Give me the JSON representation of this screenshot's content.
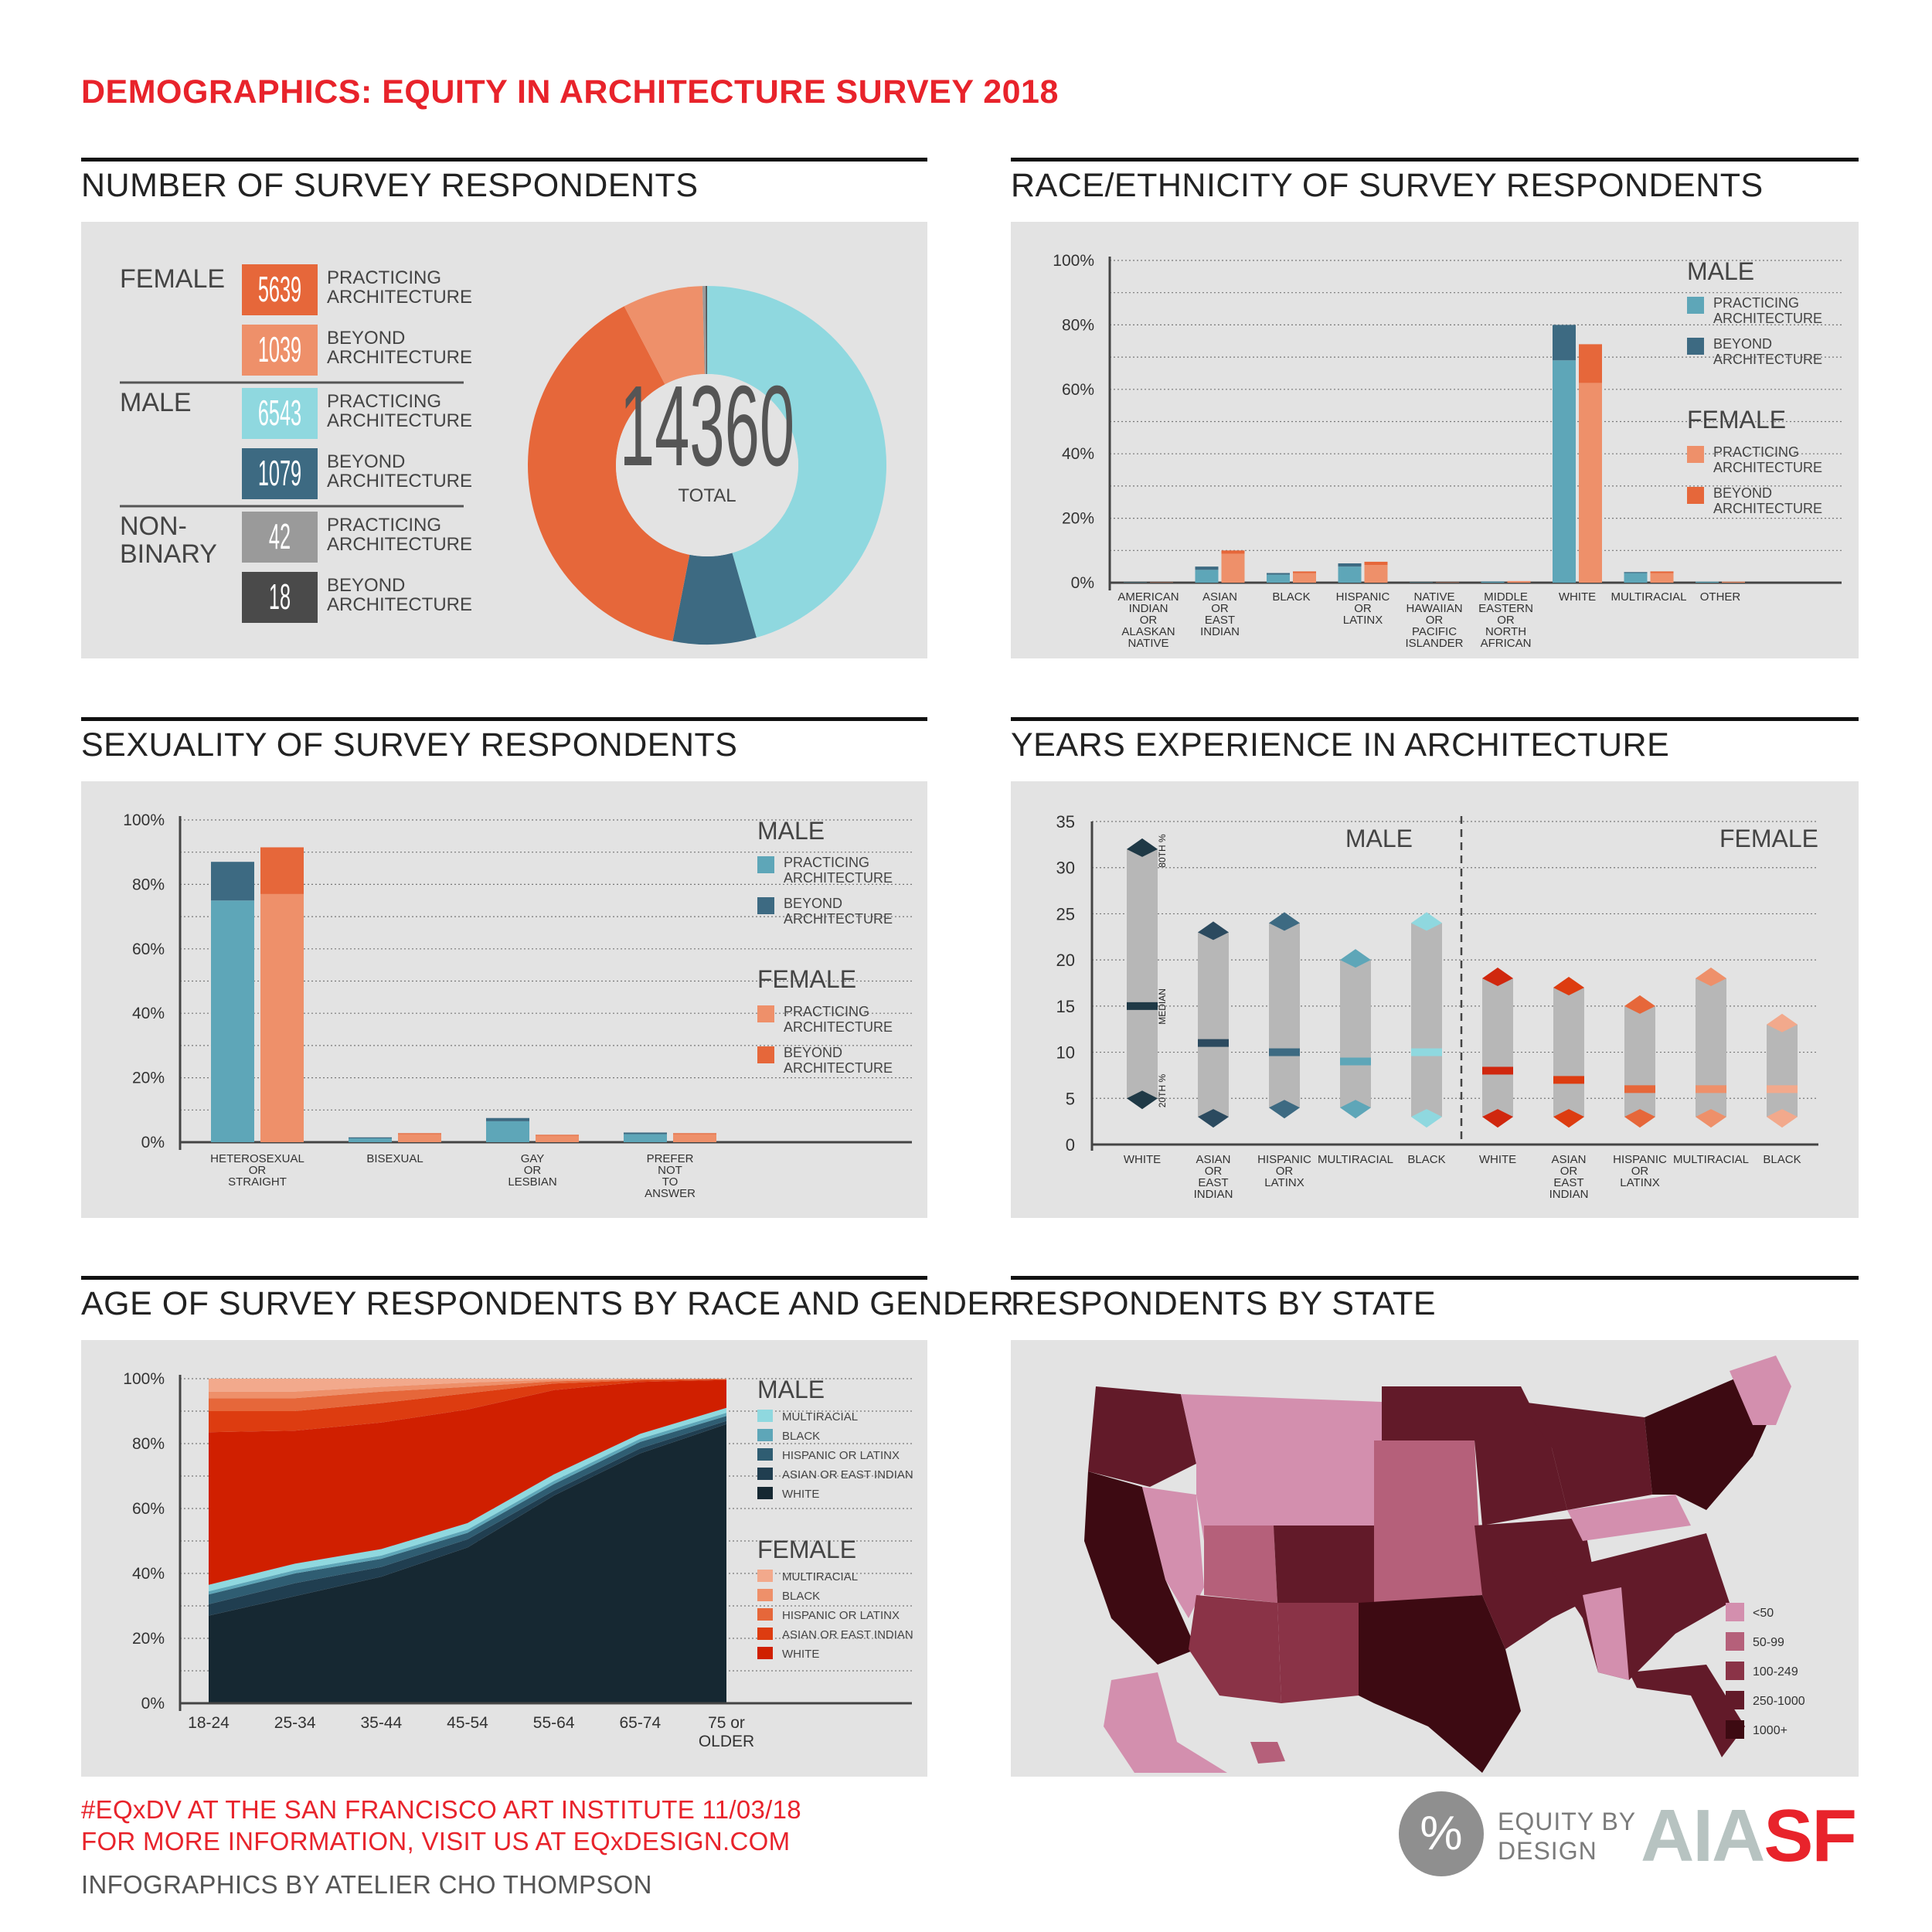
{
  "page_title": "DEMOGRAPHICS: EQUITY IN ARCHITECTURE SURVEY 2018",
  "colors": {
    "male_practicing": "#5ea6b8",
    "male_beyond": "#3d6a82",
    "female_practicing": "#ee906a",
    "female_beyond": "#e6673a",
    "donut_male_practicing": "#8fd8df",
    "nonbinary_practicing": "#9a9a9a",
    "nonbinary_beyond": "#4a4a4a",
    "panel_bg": "#e3e3e3",
    "accent_red": "#e8232b"
  },
  "sections": {
    "respondents": {
      "title": "NUMBER OF SURVEY RESPONDENTS",
      "groups": [
        {
          "label": "FEMALE",
          "items": [
            {
              "value": "5639",
              "label": "PRACTICING ARCHITECTURE",
              "color": "#e6673a"
            },
            {
              "value": "1039",
              "label": "BEYOND ARCHITECTURE",
              "color": "#ee906a"
            }
          ]
        },
        {
          "label": "MALE",
          "items": [
            {
              "value": "6543",
              "label": "PRACTICING ARCHITECTURE",
              "color": "#8fd8df"
            },
            {
              "value": "1079",
              "label": "BEYOND ARCHITECTURE",
              "color": "#3d6a82"
            }
          ]
        },
        {
          "label": "NON- BINARY",
          "items": [
            {
              "value": "42",
              "label": "PRACTICING ARCHITECTURE",
              "color": "#9a9a9a"
            },
            {
              "value": "18",
              "label": "BEYOND ARCHITECTURE",
              "color": "#4a4a4a"
            }
          ]
        }
      ],
      "total_value": "14360",
      "total_label": "TOTAL"
    },
    "race": {
      "title": "RACE/ETHNICITY OF SURVEY RESPONDENTS",
      "legend": {
        "male_heading": "MALE",
        "female_heading": "FEMALE",
        "practicing": "PRACTICING ARCHITECTURE",
        "beyond": "BEYOND ARCHITECTURE"
      }
    },
    "sexuality": {
      "title": "SEXUALITY OF SURVEY RESPONDENTS",
      "legend": {
        "male_heading": "MALE",
        "female_heading": "FEMALE",
        "practicing": "PRACTICING ARCHITECTURE",
        "beyond": "BEYOND ARCHITECTURE"
      }
    },
    "experience": {
      "title": "YEARS EXPERIENCE IN ARCHITECTURE",
      "male_heading": "MALE",
      "female_heading": "FEMALE",
      "marker_labels": {
        "p80": "80TH %",
        "median": "MEDIAN",
        "p20": "20TH %"
      }
    },
    "age": {
      "title": "AGE OF SURVEY RESPONDENTS BY RACE AND GENDER",
      "legend": {
        "male_heading": "MALE",
        "female_heading": "FEMALE",
        "male_items": [
          "MULTIRACIAL",
          "BLACK",
          "HISPANIC OR LATINX",
          "ASIAN OR EAST INDIAN",
          "WHITE"
        ],
        "female_items": [
          "MULTIRACIAL",
          "BLACK",
          "HISPANIC OR LATINX",
          "ASIAN OR EAST INDIAN",
          "WHITE"
        ]
      }
    },
    "state": {
      "title": "RESPONDENTS BY STATE",
      "legend": [
        {
          "label": "<50",
          "color": "#d38fae"
        },
        {
          "label": "50-99",
          "color": "#b5607a"
        },
        {
          "label": "100-249",
          "color": "#8a3347"
        },
        {
          "label": "250-1000",
          "color": "#621a29"
        },
        {
          "label": "1000+",
          "color": "#3d0a12"
        }
      ]
    }
  },
  "footer": {
    "line1": "#EQxDV AT THE SAN FRANCISCO ART INSTITUTE 11/03/18",
    "line2": "FOR MORE INFORMATION, VISIT US AT EQxDESIGN.COM",
    "line3": "INFOGRAPHICS BY ATELIER CHO THOMPSON",
    "logo_symbol": "%",
    "logo_text_1": "EQUITY BY",
    "logo_text_2": "DESIGN",
    "aia_grey": "AIA",
    "aia_red": "SF"
  },
  "chart_data": [
    {
      "id": "respondents",
      "type": "pie",
      "categories": [
        "Male practicing",
        "Male beyond",
        "Female practicing",
        "Female beyond",
        "Non-binary practicing",
        "Non-binary beyond"
      ],
      "values": [
        6543,
        1079,
        5639,
        1039,
        42,
        18
      ],
      "colors": [
        "#8fd8df",
        "#3d6a82",
        "#e6673a",
        "#ee906a",
        "#9a9a9a",
        "#4a4a4a"
      ]
    },
    {
      "id": "race",
      "type": "bar",
      "categories": [
        "AMERICAN INDIAN OR ALASKAN NATIVE",
        "ASIAN OR EAST INDIAN",
        "BLACK",
        "HISPANIC OR LATINX",
        "NATIVE HAWAIIAN OR PACIFIC ISLANDER",
        "MIDDLE EASTERN OR NORTH AFRICAN",
        "WHITE",
        "MULTIRACIAL",
        "OTHER"
      ],
      "series": [
        {
          "name": "MALE PRACTICING ARCHITECTURE",
          "values": [
            0.1,
            4,
            2.5,
            5,
            0.1,
            0.3,
            69,
            3,
            0.3
          ]
        },
        {
          "name": "MALE BEYOND ARCHITECTURE",
          "values": [
            0,
            1,
            0.5,
            1,
            0,
            0.1,
            11,
            0.3,
            0
          ]
        },
        {
          "name": "FEMALE PRACTICING ARCHITECTURE",
          "values": [
            0.1,
            9,
            3,
            5.5,
            0.1,
            0.4,
            62,
            3,
            0.3
          ]
        },
        {
          "name": "FEMALE BEYOND ARCHITECTURE",
          "values": [
            0,
            1,
            0.5,
            1,
            0,
            0.1,
            12,
            0.5,
            0
          ]
        }
      ],
      "ylim": [
        0,
        100
      ],
      "yticks": [
        "0%",
        "20%",
        "40%",
        "60%",
        "80%",
        "100%"
      ]
    },
    {
      "id": "sexuality",
      "type": "bar",
      "categories": [
        "HETEROSEXUAL OR STRAIGHT",
        "BISEXUAL",
        "GAY OR LESBIAN",
        "PREFER NOT TO ANSWER"
      ],
      "series": [
        {
          "name": "MALE PRACTICING ARCHITECTURE",
          "values": [
            75,
            1.2,
            6.5,
            2.5
          ]
        },
        {
          "name": "MALE BEYOND ARCHITECTURE",
          "values": [
            12,
            0.3,
            1,
            0.5
          ]
        },
        {
          "name": "FEMALE PRACTICING ARCHITECTURE",
          "values": [
            77,
            2.5,
            2,
            2.5
          ]
        },
        {
          "name": "FEMALE BEYOND ARCHITECTURE",
          "values": [
            14.5,
            0.3,
            0.3,
            0.3
          ]
        }
      ],
      "ylim": [
        0,
        100
      ],
      "yticks": [
        "0%",
        "20%",
        "40%",
        "60%",
        "80%",
        "100%"
      ]
    },
    {
      "id": "experience",
      "type": "bar",
      "categories": [
        "WHITE",
        "ASIAN OR EAST INDIAN",
        "HISPANIC OR LATINX",
        "MULTIRACIAL",
        "BLACK",
        "WHITE",
        "ASIAN OR EAST INDIAN",
        "HISPANIC OR LATINX",
        "MULTIRACIAL",
        "BLACK"
      ],
      "series": [
        {
          "name": "20TH %",
          "values": [
            5,
            3,
            4,
            4,
            3,
            3,
            3,
            3,
            3,
            3
          ]
        },
        {
          "name": "MEDIAN",
          "values": [
            15,
            11,
            10,
            9,
            10,
            8,
            7,
            6,
            6,
            6
          ]
        },
        {
          "name": "80TH %",
          "values": [
            32,
            23,
            24,
            20,
            24,
            18,
            17,
            15,
            18,
            13
          ]
        }
      ],
      "groups": [
        "MALE",
        "MALE",
        "MALE",
        "MALE",
        "MALE",
        "FEMALE",
        "FEMALE",
        "FEMALE",
        "FEMALE",
        "FEMALE"
      ],
      "ylim": [
        0,
        35
      ],
      "yticks": [
        "0",
        "5",
        "10",
        "15",
        "20",
        "25",
        "30",
        "35"
      ]
    },
    {
      "id": "age",
      "type": "area",
      "categories": [
        "18-24",
        "25-34",
        "35-44",
        "45-54",
        "55-64",
        "65-74",
        "75 or OLDER"
      ],
      "series": [
        {
          "name": "MALE WHITE",
          "values": [
            27,
            33,
            39,
            48,
            64,
            77,
            86
          ]
        },
        {
          "name": "MALE ASIAN OR EAST INDIAN",
          "values": [
            3.5,
            4,
            3,
            2.5,
            1.5,
            1.5,
            1
          ]
        },
        {
          "name": "MALE HISPANIC OR LATINX",
          "values": [
            3,
            3,
            2.5,
            2,
            2,
            2,
            1.5
          ]
        },
        {
          "name": "MALE BLACK",
          "values": [
            1,
            1,
            1,
            1,
            1,
            1,
            1
          ]
        },
        {
          "name": "MALE MULTIRACIAL",
          "values": [
            2,
            2,
            2,
            2,
            2,
            1.5,
            1.5
          ]
        },
        {
          "name": "FEMALE WHITE",
          "values": [
            47,
            41,
            39,
            35,
            26,
            16,
            8.6
          ]
        },
        {
          "name": "FEMALE ASIAN OR EAST INDIAN",
          "values": [
            6.5,
            6,
            6,
            5,
            2,
            0.5,
            0.2
          ]
        },
        {
          "name": "FEMALE HISPANIC OR LATINX",
          "values": [
            4,
            4,
            3.5,
            2,
            0.7,
            0.3,
            0.1
          ]
        },
        {
          "name": "FEMALE BLACK",
          "values": [
            2,
            2,
            1.5,
            1.3,
            0.5,
            0.1,
            0.05
          ]
        },
        {
          "name": "FEMALE MULTIRACIAL",
          "values": [
            4,
            4,
            2.5,
            1.2,
            0.3,
            0.1,
            0.05
          ]
        }
      ],
      "ylim": [
        0,
        100
      ],
      "yticks": [
        "0%",
        "20%",
        "40%",
        "60%",
        "80%",
        "100%"
      ]
    }
  ]
}
